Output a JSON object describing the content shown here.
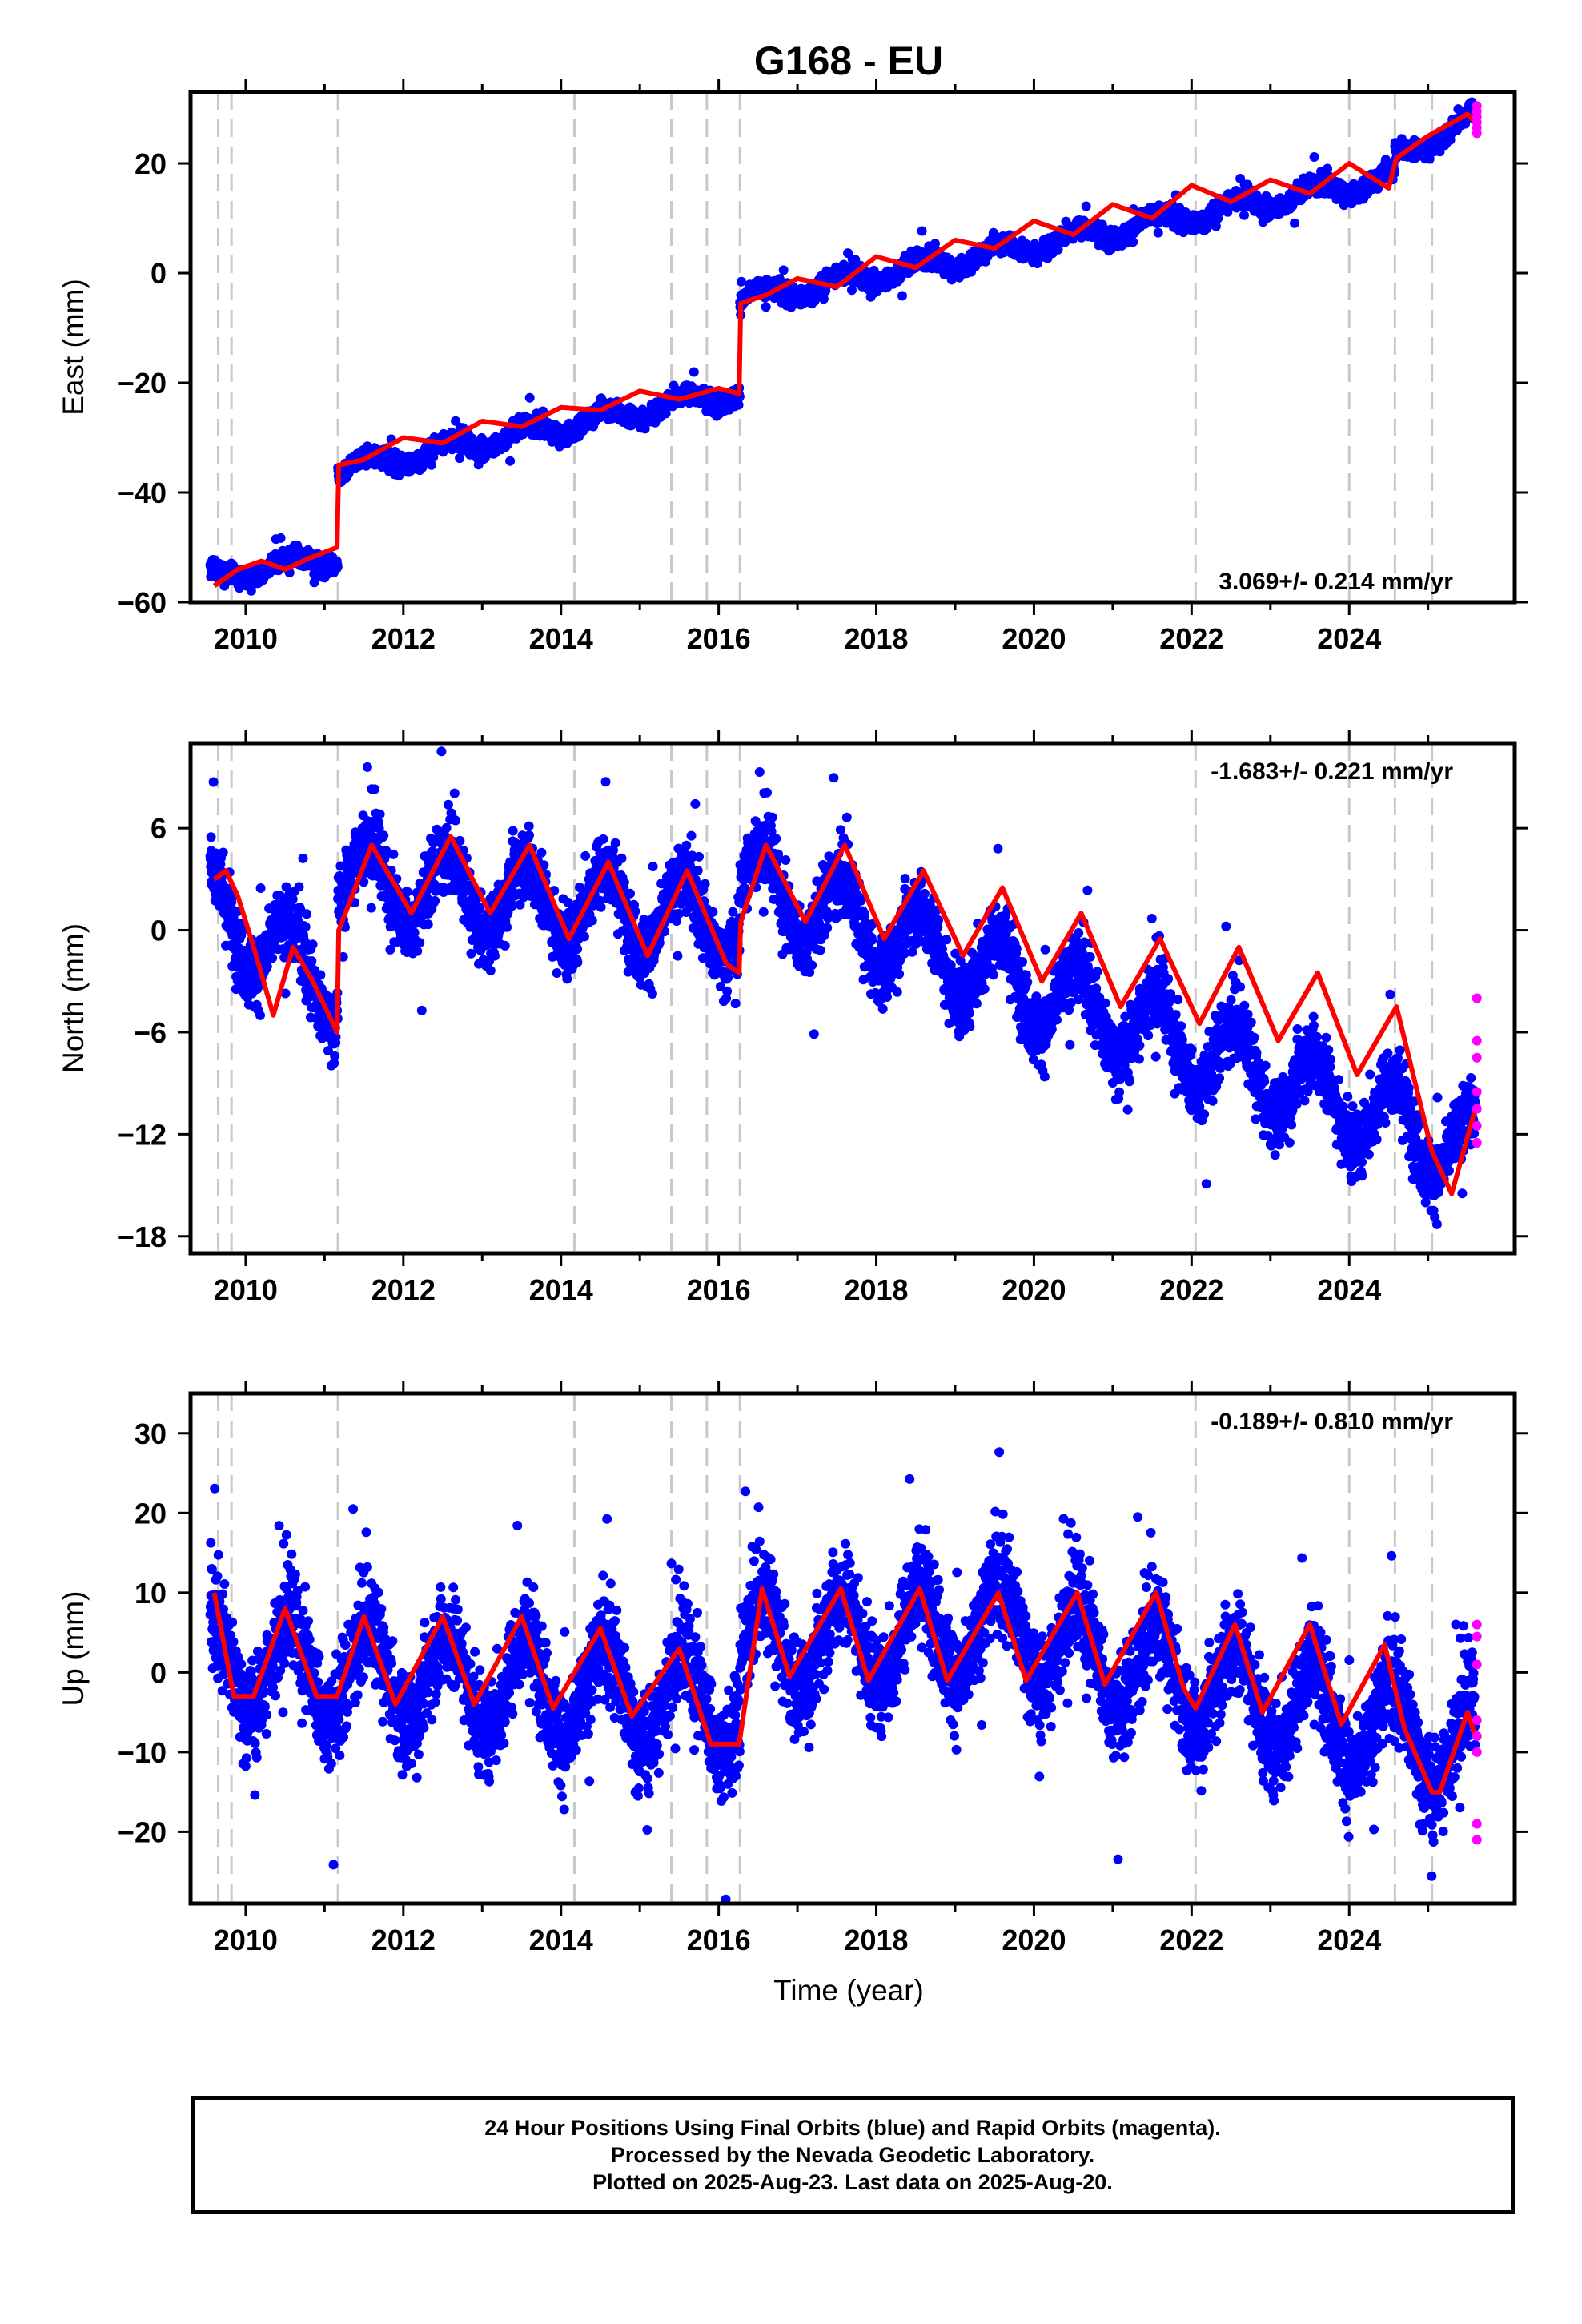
{
  "title": "G168 - EU",
  "colors": {
    "final_orbits": "#0000ff",
    "rapid_orbits": "#ff00ff",
    "model": "#ff0000",
    "event_lines": "#c8c8c8",
    "frame": "#000000"
  },
  "x_axis": {
    "label": "Time (year)",
    "ticks": [
      "2010",
      "2012",
      "2014",
      "2016",
      "2018",
      "2020",
      "2022",
      "2024"
    ],
    "range": [
      2009.3,
      2026.1
    ]
  },
  "event_lines": [
    2009.65,
    2009.82,
    2011.17,
    2014.17,
    2015.4,
    2015.85,
    2016.27,
    2022.05,
    2024.0,
    2024.58,
    2025.05
  ],
  "caption": {
    "line1": "24 Hour Positions Using Final Orbits (blue) and Rapid Orbits (magenta).",
    "line2": "Processed by the Nevada Geodetic Laboratory.",
    "line3": "Plotted on 2025-Aug-23. Last data on 2025-Aug-20."
  },
  "chart_data": [
    {
      "type": "scatter",
      "component": "East",
      "ylabel": "East (mm)",
      "yticks": [
        "20",
        "0",
        "−20",
        "−40",
        "−60"
      ],
      "ytick_values": [
        20,
        0,
        -20,
        -40,
        -60
      ],
      "ylim": [
        -60,
        33
      ],
      "velocity": "3.069+/- 0.214 mm/yr",
      "velocity_position": "bottom-right",
      "series": [
        {
          "name": "model",
          "x": [
            2009.6,
            2009.9,
            2010.2,
            2010.5,
            2010.8,
            2011.16,
            2011.18,
            2011.5,
            2012.0,
            2012.5,
            2013.0,
            2013.5,
            2014.0,
            2014.5,
            2015.0,
            2015.5,
            2016.0,
            2016.26,
            2016.28,
            2016.6,
            2017.0,
            2017.5,
            2018.0,
            2018.5,
            2019.0,
            2019.5,
            2020.0,
            2020.5,
            2021.0,
            2021.5,
            2022.0,
            2022.5,
            2023.0,
            2023.5,
            2024.0,
            2024.5,
            2024.6,
            2025.0,
            2025.5,
            2025.6
          ],
          "y": [
            -57,
            -54,
            -52.5,
            -54,
            -52,
            -50,
            -35,
            -34,
            -30,
            -31,
            -27,
            -28,
            -24.5,
            -25,
            -21.5,
            -23,
            -21,
            -22,
            -5.5,
            -4,
            -1,
            -2.5,
            3,
            1,
            6,
            4.5,
            9.5,
            7,
            12.5,
            10,
            16,
            13,
            17,
            14.5,
            20,
            15.5,
            21,
            25,
            29,
            27.5
          ]
        },
        {
          "name": "final_orbits",
          "trend_segments": [
            {
              "x0": 2009.55,
              "x1": 2011.17,
              "y0": -55.5,
              "y1": -51.5
            },
            {
              "x0": 2011.17,
              "x1": 2016.27,
              "y0": -36,
              "y1": -21.5
            },
            {
              "x0": 2016.27,
              "x1": 2024.58,
              "y0": -5,
              "y1": 17.5
            },
            {
              "x0": 2024.58,
              "x1": 2025.6,
              "y0": 21,
              "y1": 28.5
            }
          ],
          "seasonal_amplitude": 1.6,
          "scatter_sd": 1.2
        },
        {
          "name": "rapid_orbits",
          "x": [
            2025.62,
            2025.62,
            2025.62,
            2025.62,
            2025.62,
            2025.62
          ],
          "y": [
            30.5,
            29.5,
            28.5,
            27.5,
            26.5,
            25.5
          ]
        }
      ]
    },
    {
      "type": "scatter",
      "component": "North",
      "ylabel": "North (mm)",
      "yticks": [
        "6",
        "0",
        "−6",
        "−12",
        "−18"
      ],
      "ytick_values": [
        6,
        0,
        -6,
        -12,
        -18
      ],
      "ylim": [
        -19,
        11
      ],
      "velocity": "-1.683+/- 0.221 mm/yr",
      "velocity_position": "top-right",
      "series": [
        {
          "name": "model",
          "x": [
            2009.6,
            2009.75,
            2009.9,
            2010.1,
            2010.35,
            2010.6,
            2010.85,
            2011.16,
            2011.18,
            2011.6,
            2012.1,
            2012.6,
            2013.1,
            2013.6,
            2014.1,
            2014.6,
            2015.1,
            2015.6,
            2016.1,
            2016.26,
            2016.28,
            2016.6,
            2017.1,
            2017.6,
            2018.1,
            2018.6,
            2019.1,
            2019.6,
            2020.1,
            2020.6,
            2021.1,
            2021.6,
            2022.1,
            2022.6,
            2023.1,
            2023.6,
            2024.1,
            2024.6,
            2025.05,
            2025.3,
            2025.6
          ],
          "y": [
            3,
            3.5,
            2,
            -1,
            -5,
            -1,
            -3,
            -6,
            0,
            5,
            1,
            5.5,
            1,
            5,
            -0.5,
            4,
            -1.5,
            3.5,
            -2,
            -2.5,
            0.5,
            5,
            0.5,
            5,
            -0.5,
            3.5,
            -1.5,
            2.5,
            -3,
            1,
            -4.5,
            -0.5,
            -5.5,
            -1,
            -6.5,
            -2.5,
            -8.5,
            -4.5,
            -13,
            -15.5,
            -10.5
          ]
        },
        {
          "name": "final_orbits",
          "trend_segments": [
            {
              "x0": 2009.55,
              "x1": 2011.17,
              "y0": 1.5,
              "y1": -3.5
            },
            {
              "x0": 2011.17,
              "x1": 2016.27,
              "y0": 3,
              "y1": 0.5
            },
            {
              "x0": 2016.27,
              "x1": 2025.6,
              "y0": 3,
              "y1": -13
            }
          ],
          "seasonal_amplitude": 2.3,
          "scatter_sd": 1.5
        },
        {
          "name": "rapid_orbits",
          "x": [
            2025.62,
            2025.62,
            2025.62,
            2025.62,
            2025.62,
            2025.62,
            2025.62
          ],
          "y": [
            -4,
            -6.5,
            -7.5,
            -9.5,
            -10.5,
            -11.5,
            -12.5
          ]
        }
      ]
    },
    {
      "type": "scatter",
      "component": "Up",
      "ylabel": "Up (mm)",
      "yticks": [
        "30",
        "20",
        "10",
        "0",
        "−10",
        "−20"
      ],
      "ytick_values": [
        30,
        20,
        10,
        0,
        -10,
        -20
      ],
      "ylim": [
        -29,
        35
      ],
      "velocity": "-0.189+/- 0.810 mm/yr",
      "velocity_position": "top-right",
      "series": [
        {
          "name": "model",
          "x": [
            2009.6,
            2009.85,
            2010.1,
            2010.5,
            2010.9,
            2011.16,
            2011.5,
            2011.9,
            2012.5,
            2012.9,
            2013.5,
            2013.9,
            2014.5,
            2014.9,
            2015.5,
            2015.9,
            2016.26,
            2016.55,
            2016.9,
            2017.55,
            2017.9,
            2018.55,
            2018.9,
            2019.55,
            2019.9,
            2020.55,
            2020.9,
            2021.55,
            2021.9,
            2022.05,
            2022.55,
            2022.9,
            2023.5,
            2023.9,
            2024.45,
            2024.7,
            2025.05,
            2025.15,
            2025.5,
            2025.6
          ],
          "y": [
            10,
            -3,
            -3,
            8,
            -3,
            -3,
            7,
            -4,
            7,
            -4,
            7,
            -4.5,
            5.5,
            -5.5,
            3,
            -9,
            -9,
            10.5,
            -0.5,
            10.5,
            -1,
            10.5,
            -1,
            10,
            -1,
            10,
            -1.5,
            10,
            -2,
            -4.5,
            6,
            -5,
            6,
            -6.5,
            3.5,
            -7,
            -15,
            -15,
            -5,
            -8
          ]
        },
        {
          "name": "final_orbits",
          "trend_segments": [
            {
              "x0": 2009.55,
              "x1": 2016.27,
              "y0": 1.5,
              "y1": -4
            },
            {
              "x0": 2016.27,
              "x1": 2020.0,
              "y0": 3,
              "y1": 6
            },
            {
              "x0": 2020.0,
              "x1": 2025.6,
              "y0": 4,
              "y1": -10
            }
          ],
          "seasonal_amplitude": 6,
          "scatter_sd": 4.5
        },
        {
          "name": "rapid_orbits",
          "x": [
            2025.62,
            2025.62,
            2025.62,
            2025.62,
            2025.62,
            2025.62,
            2025.62,
            2025.62
          ],
          "y": [
            6,
            4.5,
            1,
            -6,
            -8,
            -10,
            -19,
            -21
          ]
        }
      ]
    }
  ]
}
